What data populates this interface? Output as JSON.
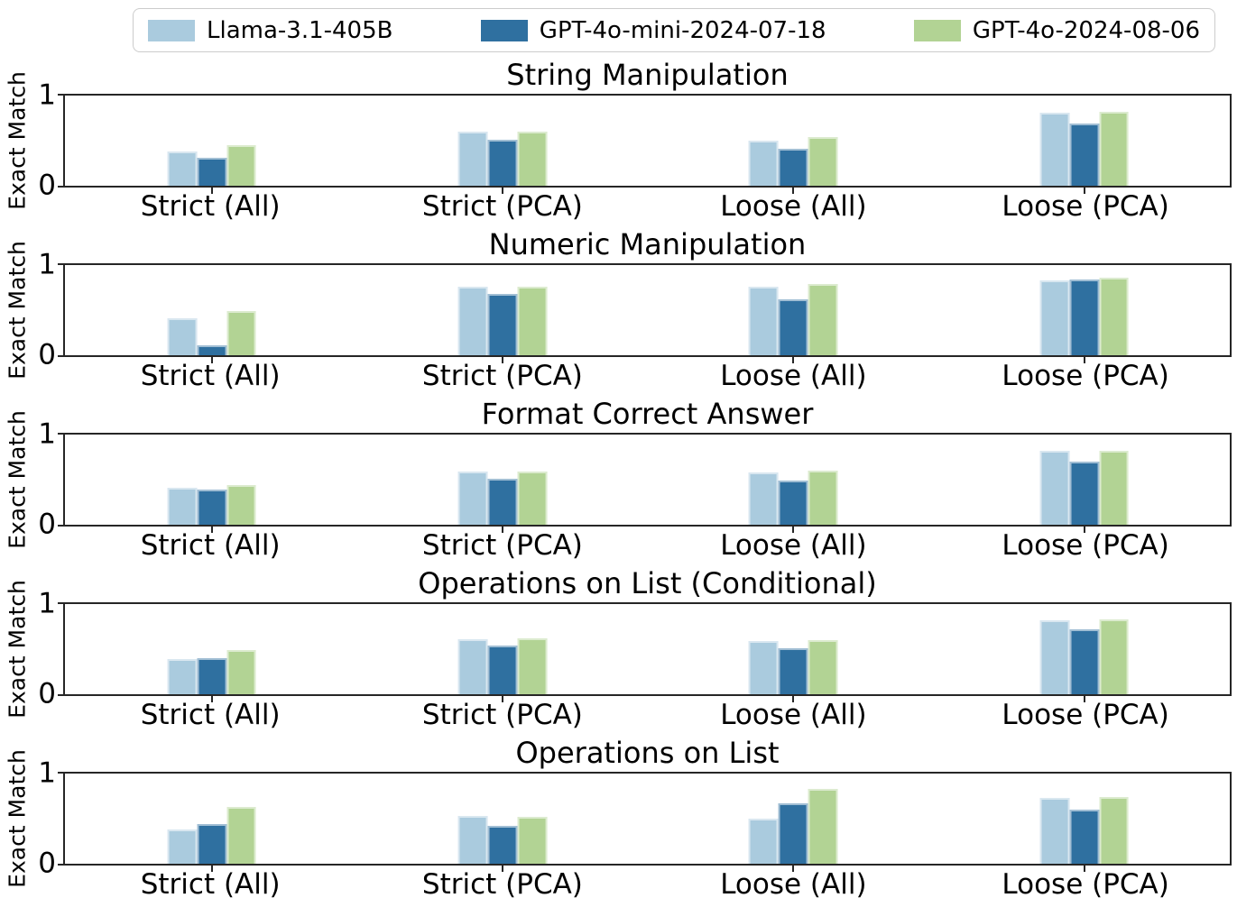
{
  "figure": {
    "background": "#ffffff",
    "spine_color": "#262626"
  },
  "legend": {
    "position": "top-center",
    "items": [
      {
        "label": "Llama-3.1-405B",
        "color": "#aacbde"
      },
      {
        "label": "GPT-4o-mini-2024-07-18",
        "color": "#2f70a0"
      },
      {
        "label": "GPT-4o-2024-08-06",
        "color": "#b2d394"
      }
    ]
  },
  "chart_data": [
    {
      "type": "bar",
      "title": "String Manipulation",
      "ylabel": "Exact Match",
      "ylim": [
        0,
        1
      ],
      "yticks": [
        "0",
        "1"
      ],
      "grid": false,
      "categories": [
        "Strict (All)",
        "Strict (PCA)",
        "Loose (All)",
        "Loose (PCA)"
      ],
      "series": [
        {
          "name": "Llama-3.1-405B",
          "values": [
            0.38,
            0.6,
            0.5,
            0.81
          ]
        },
        {
          "name": "GPT-4o-mini-2024-07-18",
          "values": [
            0.31,
            0.51,
            0.41,
            0.69
          ]
        },
        {
          "name": "GPT-4o-2024-08-06",
          "values": [
            0.45,
            0.6,
            0.54,
            0.82
          ]
        }
      ]
    },
    {
      "type": "bar",
      "title": "Numeric Manipulation",
      "ylabel": "Exact Match",
      "ylim": [
        0,
        1
      ],
      "yticks": [
        "0",
        "1"
      ],
      "grid": false,
      "categories": [
        "Strict (All)",
        "Strict (PCA)",
        "Loose (All)",
        "Loose (PCA)"
      ],
      "series": [
        {
          "name": "Llama-3.1-405B",
          "values": [
            0.41,
            0.76,
            0.76,
            0.83
          ]
        },
        {
          "name": "GPT-4o-mini-2024-07-18",
          "values": [
            0.11,
            0.68,
            0.62,
            0.84
          ]
        },
        {
          "name": "GPT-4o-2024-08-06",
          "values": [
            0.49,
            0.76,
            0.79,
            0.86
          ]
        }
      ]
    },
    {
      "type": "bar",
      "title": "Format Correct Answer",
      "ylabel": "Exact Match",
      "ylim": [
        0,
        1
      ],
      "yticks": [
        "0",
        "1"
      ],
      "grid": false,
      "categories": [
        "Strict (All)",
        "Strict (PCA)",
        "Loose (All)",
        "Loose (PCA)"
      ],
      "series": [
        {
          "name": "Llama-3.1-405B",
          "values": [
            0.41,
            0.59,
            0.58,
            0.82
          ]
        },
        {
          "name": "GPT-4o-mini-2024-07-18",
          "values": [
            0.39,
            0.51,
            0.49,
            0.7
          ]
        },
        {
          "name": "GPT-4o-2024-08-06",
          "values": [
            0.44,
            0.59,
            0.6,
            0.82
          ]
        }
      ]
    },
    {
      "type": "bar",
      "title": "Operations on List (Conditional)",
      "ylabel": "Exact Match",
      "ylim": [
        0,
        1
      ],
      "yticks": [
        "0",
        "1"
      ],
      "grid": false,
      "categories": [
        "Strict (All)",
        "Strict (PCA)",
        "Loose (All)",
        "Loose (PCA)"
      ],
      "series": [
        {
          "name": "Llama-3.1-405B",
          "values": [
            0.39,
            0.61,
            0.59,
            0.82
          ]
        },
        {
          "name": "GPT-4o-mini-2024-07-18",
          "values": [
            0.4,
            0.54,
            0.51,
            0.72
          ]
        },
        {
          "name": "GPT-4o-2024-08-06",
          "values": [
            0.49,
            0.62,
            0.6,
            0.83
          ]
        }
      ]
    },
    {
      "type": "bar",
      "title": "Operations on List",
      "ylabel": "Exact Match",
      "ylim": [
        0,
        1
      ],
      "yticks": [
        "0",
        "1"
      ],
      "grid": false,
      "categories": [
        "Strict (All)",
        "Strict (PCA)",
        "Loose (All)",
        "Loose (PCA)"
      ],
      "series": [
        {
          "name": "Llama-3.1-405B",
          "values": [
            0.38,
            0.53,
            0.5,
            0.73
          ]
        },
        {
          "name": "GPT-4o-mini-2024-07-18",
          "values": [
            0.44,
            0.42,
            0.67,
            0.6
          ]
        },
        {
          "name": "GPT-4o-2024-08-06",
          "values": [
            0.63,
            0.52,
            0.83,
            0.74
          ]
        }
      ]
    }
  ]
}
